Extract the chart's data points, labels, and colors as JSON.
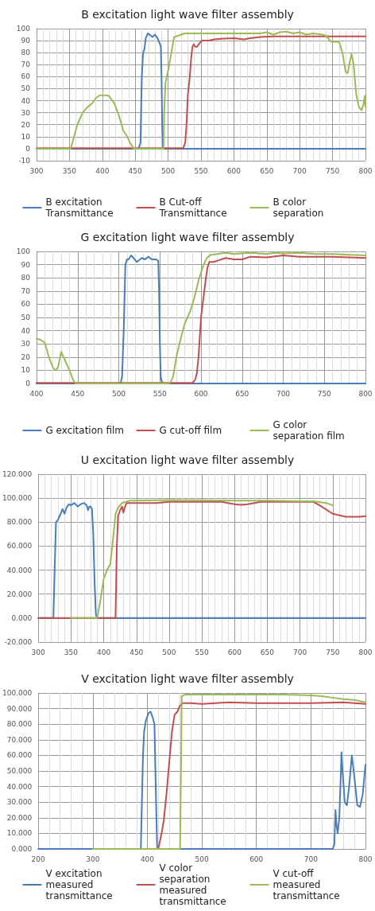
{
  "chart_data": [
    {
      "type": "line",
      "title": "B excitation light wave filter assembly",
      "xlim": [
        300,
        800
      ],
      "xticks": [
        300,
        350,
        400,
        450,
        500,
        550,
        600,
        650,
        700,
        750,
        800
      ],
      "ylim": [
        -10,
        100
      ],
      "yticks": [
        -10,
        0,
        10,
        20,
        30,
        40,
        50,
        60,
        70,
        80,
        90,
        100
      ],
      "grid": true,
      "legend": "bottom",
      "marker": "none",
      "line_style": "solid",
      "series": [
        {
          "name": "B excitation Transmittance",
          "color": "#4a7ebb",
          "x": [
            300,
            455,
            458,
            460,
            462,
            464,
            466,
            469,
            472,
            476,
            480,
            484,
            487,
            489,
            490,
            491,
            492,
            800
          ],
          "values": [
            0,
            0,
            5,
            60,
            80,
            83,
            92,
            96,
            95,
            93,
            95,
            92,
            88,
            85,
            60,
            20,
            0,
            0
          ]
        },
        {
          "name": "B Cut-off Transmittance",
          "color": "#c0504d",
          "x": [
            300,
            523,
            526,
            528,
            530,
            533,
            535,
            537,
            539,
            541,
            544,
            548,
            551,
            556,
            562,
            570,
            580,
            600,
            615,
            625,
            640,
            660,
            700,
            750,
            800
          ],
          "values": [
            0.5,
            0.5,
            5,
            20,
            45,
            60,
            75,
            85,
            87,
            85,
            85,
            88,
            90,
            90,
            90,
            91,
            91.5,
            92,
            91,
            92,
            93,
            93.5,
            93.5,
            93.5,
            93.5
          ]
        },
        {
          "name": "B color separation",
          "color": "#9bbb59",
          "x": [
            300,
            352,
            356,
            362,
            370,
            378,
            385,
            390,
            396,
            405,
            410,
            418,
            425,
            432,
            438,
            442,
            448,
            493,
            494,
            496,
            500,
            505,
            509,
            515,
            525,
            550,
            580,
            600,
            620,
            640,
            650,
            660,
            670,
            680,
            690,
            700,
            710,
            720,
            735,
            740,
            748,
            755,
            760,
            765,
            770,
            773,
            776,
            779,
            782,
            786,
            790,
            794,
            797,
            799,
            800
          ],
          "values": [
            0,
            0,
            8,
            20,
            30,
            35,
            38,
            42,
            44.5,
            44.5,
            44,
            38,
            28,
            15,
            10,
            5,
            0,
            0,
            30,
            55,
            65,
            80,
            93,
            94,
            96,
            96,
            96,
            96,
            96,
            96,
            97,
            95,
            97,
            97.5,
            96,
            97,
            95,
            96,
            95,
            94,
            89,
            89,
            89,
            80,
            64,
            63,
            72,
            79,
            70,
            45,
            35,
            32,
            37,
            44,
            35
          ]
        }
      ]
    },
    {
      "type": "line",
      "title": "G excitation light wave filter assembly",
      "xlim": [
        400,
        800
      ],
      "xticks": [
        400,
        450,
        500,
        550,
        600,
        650,
        700,
        750,
        800
      ],
      "ylim": [
        0,
        100
      ],
      "yticks": [
        0,
        10,
        20,
        30,
        40,
        50,
        60,
        70,
        80,
        90,
        100
      ],
      "grid": true,
      "legend": "bottom",
      "marker": "none",
      "line_style": "solid",
      "series": [
        {
          "name": "G excitation film",
          "color": "#4a7ebb",
          "x": [
            400,
            502,
            504,
            506,
            508,
            510,
            512,
            515,
            518,
            522,
            528,
            532,
            536,
            540,
            545,
            548,
            549,
            550,
            551,
            553,
            800
          ],
          "values": [
            0,
            0,
            5,
            40,
            90,
            94,
            94,
            97,
            95,
            92,
            95,
            94,
            96,
            94,
            94,
            93,
            70,
            30,
            5,
            0,
            0
          ]
        },
        {
          "name": "G cut-off film",
          "color": "#c0504d",
          "x": [
            400,
            590,
            593,
            595,
            597,
            600,
            603,
            606,
            608,
            610,
            615,
            620,
            630,
            640,
            650,
            660,
            680,
            700,
            720,
            740,
            760,
            780,
            800
          ],
          "values": [
            0.5,
            0.5,
            3,
            8,
            20,
            50,
            65,
            80,
            88,
            92,
            92,
            93,
            95,
            94,
            94,
            96,
            95.5,
            97,
            96,
            96,
            96,
            95.5,
            95
          ]
        },
        {
          "name": "G color separation film",
          "color": "#9bbb59",
          "x": [
            400,
            405,
            410,
            415,
            420,
            423,
            426,
            430,
            435,
            440,
            445,
            448,
            560,
            563,
            566,
            570,
            575,
            580,
            587,
            592,
            597,
            602,
            607,
            612,
            620,
            630,
            640,
            650,
            660,
            680,
            690,
            700,
            720,
            740,
            760,
            780,
            800
          ],
          "values": [
            34,
            33,
            31,
            20,
            12,
            10,
            12,
            24,
            17,
            10,
            2,
            0,
            0,
            1,
            5,
            20,
            33,
            45,
            55,
            65,
            78,
            88,
            95,
            97.5,
            98,
            99,
            98,
            98.5,
            99,
            98,
            99,
            98.5,
            99,
            98,
            98,
            97.5,
            97
          ]
        }
      ]
    },
    {
      "type": "line",
      "title": "U excitation light wave filter assembly",
      "xlim": [
        300,
        800
      ],
      "xticks": [
        300,
        350,
        400,
        450,
        500,
        550,
        600,
        650,
        700,
        750,
        800
      ],
      "ylim": [
        -20,
        120
      ],
      "yticks": [
        {
          "value": -20,
          "label": "-20.000"
        },
        {
          "value": 0,
          "label": "0.000"
        },
        {
          "value": 20,
          "label": "20.000"
        },
        {
          "value": 40,
          "label": "40.000"
        },
        {
          "value": 60,
          "label": "60.000"
        },
        {
          "value": 80,
          "label": "80.000"
        },
        {
          "value": 100,
          "label": "100.000"
        },
        {
          "value": 120,
          "label": "120.000"
        }
      ],
      "grid": true,
      "marker": "none",
      "line_style": "solid",
      "series": [
        {
          "color": "#4a7ebb",
          "x": [
            300,
            323,
            325,
            327,
            330,
            335,
            337,
            340,
            343,
            347,
            350,
            355,
            360,
            365,
            370,
            374,
            376,
            378,
            380,
            382,
            384,
            386,
            388,
            390,
            800
          ],
          "values": [
            0,
            0,
            40,
            80,
            82,
            88,
            91,
            87,
            92,
            95,
            94,
            96,
            93,
            95,
            96,
            94,
            90,
            93,
            93,
            91,
            70,
            30,
            3,
            0,
            0
          ]
        },
        {
          "color": "#c0504d",
          "x": [
            300,
            350,
            412,
            418,
            420,
            422,
            425,
            428,
            430,
            432,
            435,
            450,
            480,
            500,
            550,
            580,
            600,
            610,
            620,
            640,
            700,
            720,
            730,
            750,
            770,
            790,
            800
          ],
          "values": [
            0,
            0,
            0,
            0,
            60,
            85,
            90,
            93,
            88,
            92,
            96,
            96,
            96,
            97,
            97,
            97,
            95,
            94.5,
            95,
            97,
            97,
            97,
            94,
            87,
            84.5,
            84.5,
            85
          ]
        },
        {
          "color": "#9bbb59",
          "x": [
            350,
            390,
            395,
            400,
            405,
            410,
            415,
            418,
            422,
            428,
            440,
            500,
            600,
            650,
            700,
            720,
            740,
            750
          ],
          "values": [
            0,
            0,
            15,
            33,
            40,
            45,
            70,
            87,
            92,
            96,
            98,
            98.5,
            98,
            98,
            97.5,
            97.5,
            96,
            94
          ]
        }
      ]
    },
    {
      "type": "line",
      "title": "V excitation light wave filter assembly",
      "xlim": [
        200,
        800
      ],
      "xticks": [
        200,
        300,
        400,
        500,
        600,
        700,
        800
      ],
      "ylim": [
        0,
        100
      ],
      "yticks": [
        {
          "value": 0,
          "label": "0.000"
        },
        {
          "value": 10,
          "label": "10.000"
        },
        {
          "value": 20,
          "label": "20.000"
        },
        {
          "value": 30,
          "label": "30.000"
        },
        {
          "value": 40,
          "label": "40.000"
        },
        {
          "value": 50,
          "label": "50.000"
        },
        {
          "value": 60,
          "label": "60.000"
        },
        {
          "value": 70,
          "label": "70.000"
        },
        {
          "value": 80,
          "label": "80.000"
        },
        {
          "value": 90,
          "label": "90.000"
        },
        {
          "value": 100,
          "label": "100.000"
        }
      ],
      "grid": true,
      "legend": "bottom",
      "marker": "none",
      "line_style": "solid",
      "series": [
        {
          "name": "V excitation measured transmittance",
          "color": "#4a7ebb",
          "x": [
            200,
            388,
            390,
            392,
            394,
            397,
            402,
            406,
            410,
            413,
            416,
            418,
            740,
            743,
            745,
            747,
            749,
            752,
            755,
            756,
            758,
            762,
            766,
            770,
            775,
            780,
            785,
            790,
            795,
            800
          ],
          "values": [
            0,
            0,
            30,
            60,
            75,
            82,
            87,
            88,
            84,
            80,
            30,
            0,
            0,
            3,
            25,
            15,
            10,
            20,
            50,
            62,
            50,
            30,
            28,
            40,
            60,
            45,
            28,
            27,
            35,
            54
          ]
        },
        {
          "name": "V color separation measured transmittance",
          "color": "#c0504d",
          "x": [
            420,
            425,
            430,
            435,
            440,
            445,
            450,
            455,
            460,
            465,
            480,
            500,
            550,
            600,
            700,
            760,
            800
          ],
          "values": [
            0,
            8,
            18,
            35,
            55,
            75,
            86,
            88,
            92,
            93.5,
            93.5,
            93,
            94,
            93.5,
            93.5,
            94,
            93
          ]
        },
        {
          "name": "V cut-off measured transmittance",
          "color": "#9bbb59",
          "x": [
            300,
            460,
            462,
            463,
            470,
            550,
            650,
            700,
            720,
            740,
            760,
            780,
            800
          ],
          "values": [
            0,
            0,
            60,
            98,
            99,
            99,
            99,
            98.5,
            98,
            97,
            96,
            95.5,
            94
          ]
        }
      ]
    }
  ]
}
